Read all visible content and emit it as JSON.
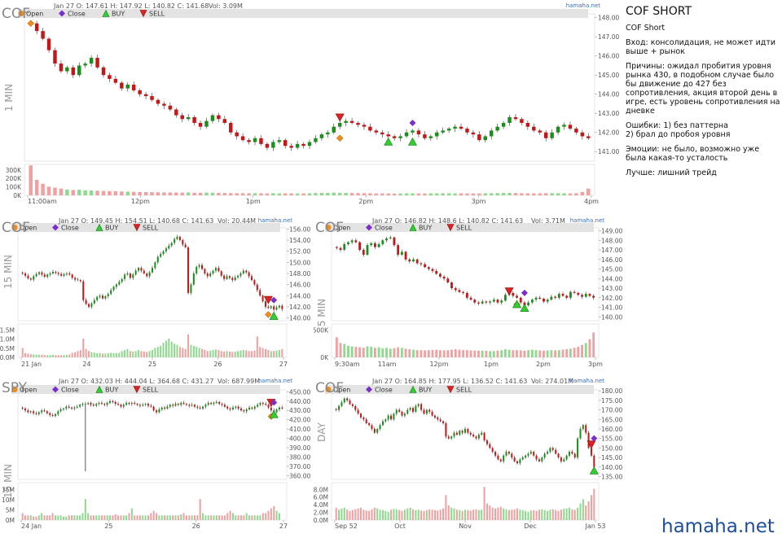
{
  "notes": {
    "title": "COF SHORT",
    "subtitle": "COF Short",
    "entry": "Вход: консолидация, не может идти выше + рынок",
    "reasons": "Причины: ожидал пробития уровня рынка 430, в подобном случае было бы движение до 427 без сопротивления, акция второй день в игре, есть уровень сопротивления на дневке",
    "errors_1": "Ошибки: 1) без паттерна",
    "errors_2": "2) брал до пробоя уровня",
    "emotions": "Эмоции: не было, возможно уже была какая-то усталость",
    "better": "Лучше: лишний трейд"
  },
  "brand": "hamaha.net",
  "legend": {
    "open": "Open",
    "close": "Close",
    "buy": "BUY",
    "sell": "SELL"
  },
  "colors": {
    "up": "#1a8f1a",
    "down": "#c41818",
    "vol_up": "#8fd98f",
    "vol_down": "#f0a0a0",
    "open_marker": "#f08c1e",
    "close_marker": "#7a2fc9",
    "buy_marker": "#33cc33",
    "sell_marker": "#dd2222",
    "brand": "#1f4e9a",
    "watermark": "#3a6fc0"
  },
  "chart_data": [
    {
      "id": "c1",
      "type": "candlestick",
      "symbol": "COF",
      "interval": "1 MIN",
      "header": "Jan 27 O: 147.61 H: 147.92 L: 140.82 C: 141.68",
      "vol_label": "Vol: 3.09M",
      "watermark": "hamaha.net",
      "x_ticks": [
        "11:00am",
        "12pm",
        "1pm",
        "2pm",
        "3pm",
        "4pm"
      ],
      "y_ticks": [
        "141.00",
        "142.00",
        "143.00",
        "144.00",
        "145.00",
        "146.00",
        "147.00",
        "148.00"
      ],
      "ylim": [
        140.5,
        148.2
      ],
      "vol_ticks": [
        "0K",
        "100K",
        "200K",
        "300K"
      ],
      "vol_max": 320,
      "closes": [
        147.7,
        147.3,
        146.9,
        146.3,
        145.6,
        145.2,
        145.4,
        145.0,
        145.5,
        145.6,
        145.9,
        145.4,
        145.0,
        144.8,
        144.6,
        144.3,
        144.5,
        144.2,
        144.0,
        143.9,
        143.7,
        143.5,
        143.4,
        143.2,
        142.9,
        142.7,
        142.8,
        142.5,
        142.3,
        142.6,
        142.9,
        142.7,
        142.5,
        142.0,
        141.8,
        141.6,
        141.5,
        141.7,
        141.4,
        141.2,
        141.5,
        141.6,
        141.3,
        141.2,
        141.4,
        141.3,
        141.5,
        141.7,
        141.9,
        142.0,
        142.3,
        142.5,
        142.6,
        142.5,
        142.4,
        142.3,
        142.1,
        142.0,
        141.9,
        141.8,
        141.7,
        141.8,
        142.0,
        142.1,
        141.9,
        141.7,
        141.8,
        142.0,
        142.1,
        142.2,
        142.3,
        142.2,
        142.0,
        141.9,
        141.6,
        141.8,
        142.1,
        142.3,
        142.5,
        142.8,
        142.7,
        142.5,
        142.3,
        142.1,
        142.0,
        141.7,
        142.0,
        142.3,
        142.4,
        142.2,
        142.0,
        141.8,
        141.7
      ],
      "volumes": [
        310,
        160,
        120,
        90,
        80,
        70,
        60,
        55,
        58,
        52,
        50,
        48,
        45,
        44,
        42,
        40,
        38,
        36,
        35,
        34,
        33,
        32,
        30,
        30,
        29,
        28,
        30,
        27,
        26,
        28,
        27,
        25,
        24,
        23,
        22,
        22,
        21,
        22,
        21,
        20,
        22,
        20,
        21,
        20,
        19,
        20,
        21,
        24,
        25,
        26,
        28,
        26,
        25,
        24,
        23,
        22,
        21,
        20,
        20,
        19,
        18,
        19,
        20,
        21,
        20,
        19,
        20,
        21,
        22,
        21,
        20,
        21,
        20,
        19,
        20,
        21,
        22,
        23,
        24,
        25,
        24,
        22,
        21,
        20,
        21,
        22,
        23,
        22,
        21,
        20,
        22,
        35,
        70
      ],
      "markers": [
        {
          "kind": "open",
          "i": 0,
          "price": 147.7
        },
        {
          "kind": "sell",
          "i": 51,
          "price": 142.8
        },
        {
          "kind": "open",
          "i": 51,
          "price": 141.7
        },
        {
          "kind": "buy",
          "i": 59,
          "price": 141.5
        },
        {
          "kind": "close",
          "i": 63,
          "price": 142.5
        },
        {
          "kind": "buy",
          "i": 63,
          "price": 141.5
        }
      ]
    },
    {
      "id": "c2",
      "type": "candlestick",
      "symbol": "COF",
      "interval": "15 MIN",
      "header": "Jan 27 O: 149.45 H: 154.51 L: 140.68 C: 141.63",
      "vol_label": "Vol: 20.44M",
      "watermark": "hamaha.net",
      "x_ticks": [
        "21 Jan",
        "24",
        "25",
        "26",
        "27"
      ],
      "y_ticks": [
        "140.00",
        "142.00",
        "144.00",
        "146.00",
        "148.00",
        "150.00",
        "152.00",
        "154.00",
        "156.00"
      ],
      "ylim": [
        139.5,
        156.2
      ],
      "vol_ticks": [
        "0.0M",
        "0.5M",
        "1.0M",
        "1.5M"
      ],
      "vol_max": 1.6,
      "closes": [
        148.0,
        147.6,
        147.1,
        146.9,
        147.5,
        147.9,
        148.2,
        147.8,
        147.4,
        147.8,
        148.0,
        148.3,
        148.1,
        147.9,
        147.6,
        147.9,
        148.0,
        147.8,
        147.2,
        146.9,
        146.8,
        146.6,
        143.2,
        142.5,
        142.0,
        142.6,
        143.2,
        143.8,
        144.0,
        143.5,
        143.9,
        144.3,
        145.0,
        145.6,
        146.0,
        146.5,
        147.0,
        147.8,
        148.0,
        147.2,
        147.8,
        148.5,
        149.0,
        148.5,
        148.0,
        147.5,
        148.2,
        149.0,
        150.0,
        151.0,
        151.5,
        152.0,
        152.5,
        153.0,
        153.5,
        154.2,
        154.6,
        154.0,
        153.2,
        152.7,
        144.5,
        146.0,
        148.0,
        149.2,
        149.5,
        148.8,
        148.0,
        147.5,
        148.0,
        148.5,
        149.0,
        148.4,
        147.6,
        147.0,
        147.5,
        147.2,
        146.8,
        147.3,
        147.6,
        148.0,
        148.5,
        148.2,
        147.5,
        146.8,
        146.0,
        145.0,
        144.0,
        143.0,
        142.0,
        141.8,
        142.1,
        141.5,
        141.9,
        142.2,
        141.6
      ],
      "volumes": [
        0.45,
        0.2,
        0.18,
        0.15,
        0.14,
        0.13,
        0.12,
        0.12,
        0.11,
        0.1,
        0.11,
        0.12,
        0.1,
        0.1,
        0.1,
        0.11,
        0.12,
        0.14,
        0.22,
        0.25,
        0.3,
        0.35,
        0.9,
        0.4,
        0.3,
        0.25,
        0.22,
        0.2,
        0.2,
        0.18,
        0.18,
        0.2,
        0.22,
        0.2,
        0.2,
        0.22,
        0.3,
        0.35,
        0.4,
        0.3,
        0.28,
        0.3,
        0.35,
        0.3,
        0.28,
        0.26,
        0.3,
        0.35,
        0.45,
        0.5,
        0.55,
        0.7,
        0.8,
        0.9,
        0.75,
        0.65,
        0.6,
        0.5,
        0.45,
        0.4,
        1.1,
        0.6,
        0.55,
        0.5,
        0.45,
        0.4,
        0.35,
        0.3,
        0.32,
        0.35,
        0.38,
        0.35,
        0.3,
        0.28,
        0.3,
        0.28,
        0.26,
        0.28,
        0.3,
        0.33,
        0.35,
        0.33,
        0.3,
        0.3,
        0.32,
        1.0,
        0.5,
        0.45,
        0.4,
        0.35,
        0.3,
        0.3,
        0.32,
        0.35,
        0.4
      ],
      "markers": [
        {
          "kind": "sell",
          "i": 89,
          "price": 143.3
        },
        {
          "kind": "close",
          "i": 91,
          "price": 143.2
        },
        {
          "kind": "open",
          "i": 89,
          "price": 140.6
        },
        {
          "kind": "buy",
          "i": 91,
          "price": 140.3
        }
      ]
    },
    {
      "id": "c3",
      "type": "candlestick",
      "symbol": "COF",
      "interval": "5 MIN",
      "header": "Jan 27 O: 146.82 H: 148.6 L: 140.82 C: 141.63",
      "vol_label": "Vol: 3.71M",
      "watermark": "hamaha.net",
      "x_ticks": [
        "9:30am",
        "11am",
        "12pm",
        "1pm",
        "2pm",
        "3pm"
      ],
      "y_ticks": [
        "140.00",
        "141.00",
        "142.00",
        "143.00",
        "144.00",
        "145.00",
        "146.00",
        "147.00",
        "148.00",
        "149.00"
      ],
      "ylim": [
        139.6,
        149.3
      ],
      "vol_ticks": [
        "0K",
        "500K"
      ],
      "vol_max": 700,
      "closes": [
        147.2,
        147.0,
        147.6,
        147.8,
        148.0,
        147.8,
        147.0,
        146.5,
        147.5,
        147.7,
        147.3,
        147.6,
        148.0,
        148.2,
        148.3,
        147.5,
        146.5,
        146.8,
        146.0,
        145.8,
        146.0,
        145.6,
        145.5,
        145.2,
        145.0,
        144.8,
        144.5,
        144.2,
        144.0,
        143.6,
        143.0,
        142.8,
        142.6,
        142.5,
        142.0,
        141.8,
        141.5,
        141.4,
        141.6,
        141.5,
        141.6,
        141.8,
        141.5,
        141.7,
        142.3,
        142.5,
        142.2,
        142.0,
        141.5,
        141.2,
        141.5,
        141.8,
        142.0,
        141.9,
        141.6,
        141.8,
        142.1,
        142.0,
        142.4,
        142.2,
        142.0,
        142.6,
        142.5,
        142.3,
        142.1,
        142.4,
        142.2,
        142.0
      ],
      "volumes": [
        420,
        300,
        280,
        240,
        230,
        220,
        210,
        200,
        230,
        220,
        200,
        210,
        190,
        200,
        180,
        190,
        210,
        200,
        180,
        170,
        160,
        150,
        150,
        145,
        150,
        155,
        160,
        150,
        145,
        150,
        160,
        170,
        160,
        150,
        150,
        145,
        140,
        140,
        140,
        135,
        130,
        130,
        140,
        150,
        170,
        160,
        150,
        150,
        145,
        140,
        150,
        160,
        150,
        145,
        140,
        145,
        150,
        145,
        150,
        160,
        170,
        180,
        200,
        220,
        260,
        300,
        380,
        520
      ],
      "markers": [
        {
          "kind": "sell",
          "i": 45,
          "price": 142.7
        },
        {
          "kind": "close",
          "i": 49,
          "price": 142.5
        },
        {
          "kind": "open",
          "i": 47,
          "price": 141.3
        },
        {
          "kind": "buy",
          "i": 47,
          "price": 141.3
        },
        {
          "kind": "buy",
          "i": 49,
          "price": 140.9
        }
      ]
    },
    {
      "id": "c4",
      "type": "candlestick",
      "symbol": "SPY",
      "interval": "15 MIN",
      "header": "Jan 27 O: 432.03 H: 444.04 L: 364.68 C: 431.27",
      "vol_label": "Vol: 687.99M",
      "watermark": "hamaha.net",
      "x_ticks": [
        "24 Jan",
        "25",
        "26",
        "27"
      ],
      "y_ticks": [
        "360.00",
        "370.00",
        "380.00",
        "390.00",
        "400.00",
        "410.00",
        "420.00",
        "430.00",
        "440.00",
        "450.00"
      ],
      "ylim": [
        356,
        452
      ],
      "vol_ticks": [
        "0M",
        "5M",
        "10M",
        "15M"
      ],
      "vol_max": 16,
      "closes": [
        432,
        430,
        428,
        429,
        427,
        426,
        428,
        430,
        429,
        427,
        425,
        424,
        426,
        429,
        431,
        432,
        434,
        433,
        432,
        433,
        434,
        436,
        437,
        437,
        438,
        436,
        435,
        437,
        438,
        437,
        436,
        438,
        440,
        439,
        437,
        436,
        434,
        436,
        438,
        437,
        438,
        437,
        436,
        435,
        436,
        437,
        435,
        434,
        430,
        428,
        431,
        433,
        432,
        434,
        436,
        435,
        437,
        436,
        438,
        437,
        436,
        435,
        436,
        434,
        433,
        432,
        434,
        436,
        438,
        437,
        438,
        439,
        437,
        436,
        434,
        432,
        431,
        433,
        434,
        432,
        430,
        429,
        431,
        433,
        432,
        434,
        436,
        438,
        437,
        436,
        433,
        430,
        428,
        431,
        433,
        432
      ],
      "volumes": [
        3,
        2,
        2,
        2,
        1.5,
        1.5,
        2,
        3,
        2,
        2,
        2,
        3,
        2,
        2,
        2,
        1.5,
        1.5,
        2,
        2,
        2,
        2,
        2,
        3,
        9,
        3,
        2,
        2,
        2,
        2,
        2,
        2,
        2,
        2,
        2,
        2.5,
        2,
        2,
        2,
        2,
        3,
        5,
        2,
        2,
        2,
        2,
        2,
        2,
        3,
        4,
        3,
        2,
        2,
        2,
        2,
        2,
        2,
        2,
        2,
        2.5,
        3,
        2,
        2,
        2,
        2,
        2,
        9,
        3,
        2,
        2,
        2,
        2,
        2,
        2,
        2,
        2,
        3,
        4,
        3,
        2,
        2,
        2,
        2,
        3,
        2,
        2,
        2,
        2,
        2,
        3,
        3,
        4,
        5,
        6,
        4,
        3
      ],
      "wick": {
        "i": 23,
        "low": 364.7
      },
      "markers": [
        {
          "kind": "sell",
          "i": 91,
          "price": 438.5
        },
        {
          "kind": "close",
          "i": 92,
          "price": 438.5
        },
        {
          "kind": "open",
          "i": 91,
          "price": 423.5
        },
        {
          "kind": "buy",
          "i": 92,
          "price": 425.5
        }
      ]
    },
    {
      "id": "c5",
      "type": "candlestick",
      "symbol": "COF",
      "interval": "DAY",
      "header": "Jan 27 O: 164.85 H: 177.95 L: 136.52 C: 141.63",
      "vol_label": "Vol: 274.01M",
      "watermark": "hamaha.net",
      "x_ticks": [
        "Sep 52",
        "Oct",
        "Nov",
        "Dec",
        "Jan 53"
      ],
      "y_ticks": [
        "135.00",
        "140.00",
        "145.00",
        "150.00",
        "155.00",
        "160.00",
        "165.00",
        "170.00",
        "175.00",
        "180.00"
      ],
      "ylim": [
        133.5,
        180.5
      ],
      "vol_ticks": [
        "0.0M",
        "2.0M",
        "4.0M",
        "6.0M",
        "8.0M"
      ],
      "vol_max": 9,
      "closes": [
        170,
        172,
        174,
        176,
        175,
        173,
        172,
        170,
        168,
        166,
        165,
        163,
        162,
        160,
        158,
        160,
        162,
        164,
        165,
        167,
        165,
        168,
        170,
        169,
        167,
        168,
        170,
        171,
        169,
        172,
        173,
        170,
        168,
        170,
        169,
        167,
        166,
        165,
        164,
        163,
        156,
        155,
        156,
        158,
        157,
        159,
        158,
        160,
        158,
        157,
        156,
        155,
        157,
        158,
        154,
        152,
        150,
        148,
        146,
        144,
        143,
        146,
        148,
        147,
        145,
        143,
        142,
        144,
        145,
        146,
        147,
        148,
        146,
        144,
        143,
        145,
        147,
        148,
        150,
        149,
        147,
        145,
        143,
        144,
        146,
        148,
        147,
        145,
        155,
        160,
        162,
        158,
        150,
        146,
        140
      ],
      "volumes": [
        3,
        2.5,
        2.8,
        3,
        2.5,
        2.2,
        2.4,
        2.6,
        2.8,
        3,
        2.5,
        2.3,
        2.2,
        2.6,
        3,
        2.8,
        2.5,
        2.4,
        2.2,
        2,
        2.5,
        2.7,
        2.6,
        2.4,
        2.2,
        2.5,
        2.8,
        3,
        2.6,
        2.4,
        2.5,
        2.3,
        2.2,
        2.4,
        2.6,
        2.5,
        2.4,
        2.3,
        2.5,
        2.8,
        6,
        3.5,
        3,
        2.8,
        2.5,
        2.4,
        2.2,
        2.5,
        2.4,
        2.3,
        2.5,
        2.6,
        2.4,
        2.5,
        8,
        4,
        3.5,
        3,
        2.8,
        3,
        3.2,
        2.8,
        2.6,
        2.4,
        2.5,
        2.6,
        2.8,
        2.5,
        2.4,
        2.2,
        2,
        2.3,
        2.4,
        2.2,
        2.5,
        2.6,
        2.4,
        2.2,
        2.5,
        2.6,
        2.4,
        2.2,
        2.5,
        2.7,
        2.8,
        3,
        2.6,
        2.5,
        3,
        4,
        5,
        3.5,
        4.5,
        6,
        7.5
      ],
      "markers": [
        {
          "kind": "sell",
          "i": 93,
          "price": 152
        },
        {
          "kind": "close",
          "i": 94,
          "price": 155
        },
        {
          "kind": "buy",
          "i": 94,
          "price": 138
        }
      ]
    }
  ]
}
